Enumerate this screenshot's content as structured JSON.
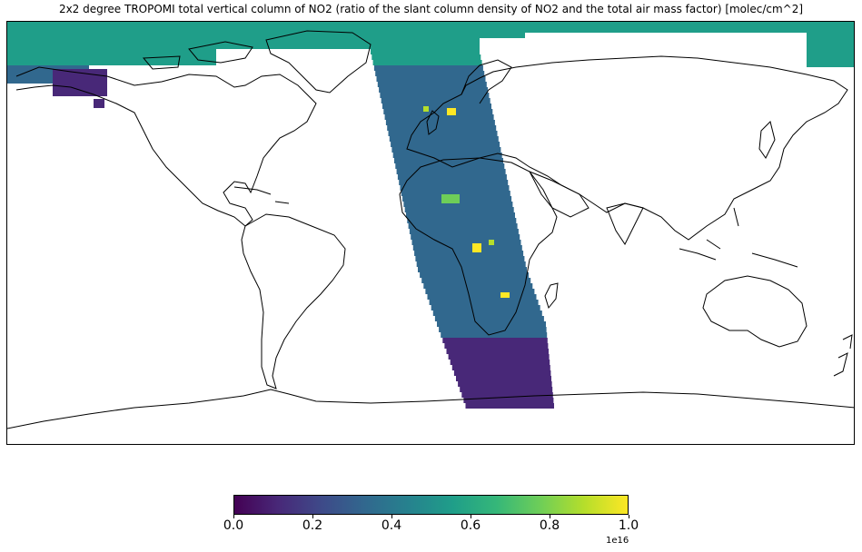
{
  "title": "2x2 degree TROPOMI total vertical column of NO2 (ratio of the slant column density of NO2 and the total air mass factor) [molec/cm^2]",
  "colorbar": {
    "colormap": "viridis",
    "stops": [
      "#440154",
      "#482878",
      "#3e4a89",
      "#31688e",
      "#26828e",
      "#1f9e89",
      "#35b779",
      "#6ece58",
      "#b5de2b",
      "#fde725"
    ],
    "ticks": [
      "0.0",
      "0.2",
      "0.4",
      "0.6",
      "0.8",
      "1.0"
    ],
    "multiplier": "1e16",
    "range": [
      0,
      1.0
    ]
  },
  "map": {
    "projection": "PlateCarree",
    "coastline_color": "#000000",
    "swath_colors": {
      "arctic": "#1f9e89",
      "mid": "#31688e",
      "south": "#482878"
    },
    "hotspots": [
      "#b5de2b",
      "#fde725",
      "#6ece58"
    ]
  }
}
